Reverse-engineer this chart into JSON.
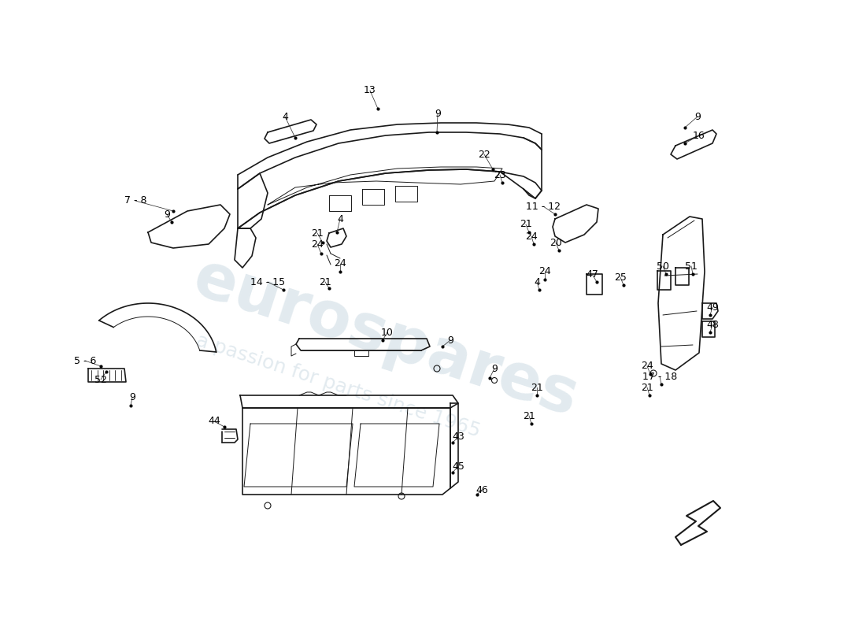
{
  "bg": "#ffffff",
  "lc": "#1a1a1a",
  "wm1": "eurospares",
  "wm2": "a passion for parts since 1965",
  "wmc": "#b8ccd8",
  "wm_alpha": 0.4,
  "lw": 1.2,
  "lt": 0.7,
  "fs": 9,
  "labels": [
    [
      "4",
      362,
      148,
      375,
      175
    ],
    [
      "13",
      470,
      115,
      480,
      138
    ],
    [
      "9",
      556,
      145,
      555,
      168
    ],
    [
      "22",
      615,
      196,
      626,
      215
    ],
    [
      "23",
      635,
      222,
      638,
      232
    ],
    [
      "9",
      886,
      148,
      870,
      162
    ],
    [
      "16",
      888,
      172,
      870,
      182
    ],
    [
      "7 - 8",
      172,
      255,
      220,
      268
    ],
    [
      "4",
      432,
      278,
      428,
      295
    ],
    [
      "24",
      403,
      310,
      408,
      322
    ],
    [
      "21",
      403,
      296,
      410,
      308
    ],
    [
      "14 - 15",
      340,
      358,
      360,
      368
    ],
    [
      "21",
      413,
      358,
      418,
      366
    ],
    [
      "24",
      432,
      335,
      432,
      345
    ],
    [
      "11 - 12",
      690,
      262,
      705,
      272
    ],
    [
      "20",
      706,
      308,
      710,
      318
    ],
    [
      "21",
      668,
      285,
      672,
      295
    ],
    [
      "24",
      675,
      300,
      678,
      310
    ],
    [
      "9",
      628,
      468,
      622,
      480
    ],
    [
      "21",
      682,
      492,
      682,
      502
    ],
    [
      "24",
      692,
      345,
      692,
      355
    ],
    [
      "47",
      752,
      348,
      758,
      358
    ],
    [
      "25",
      788,
      352,
      792,
      362
    ],
    [
      "4",
      682,
      358,
      685,
      368
    ],
    [
      "9",
      212,
      272,
      218,
      282
    ],
    [
      "21",
      672,
      528,
      675,
      538
    ],
    [
      "24",
      822,
      465,
      826,
      475
    ],
    [
      "21",
      822,
      492,
      825,
      502
    ],
    [
      "17 - 18",
      838,
      478,
      840,
      488
    ],
    [
      "50",
      842,
      338,
      846,
      348
    ],
    [
      "51",
      878,
      338,
      880,
      348
    ],
    [
      "49",
      905,
      390,
      902,
      400
    ],
    [
      "48",
      905,
      412,
      902,
      422
    ],
    [
      "10",
      492,
      422,
      486,
      432
    ],
    [
      "5 - 6",
      108,
      458,
      128,
      465
    ],
    [
      "9",
      168,
      505,
      166,
      515
    ],
    [
      "52",
      128,
      482,
      135,
      472
    ],
    [
      "44",
      272,
      535,
      285,
      542
    ],
    [
      "9",
      572,
      432,
      562,
      440
    ],
    [
      "43",
      582,
      555,
      575,
      562
    ],
    [
      "45",
      582,
      592,
      575,
      600
    ],
    [
      "46",
      612,
      622,
      606,
      628
    ]
  ]
}
